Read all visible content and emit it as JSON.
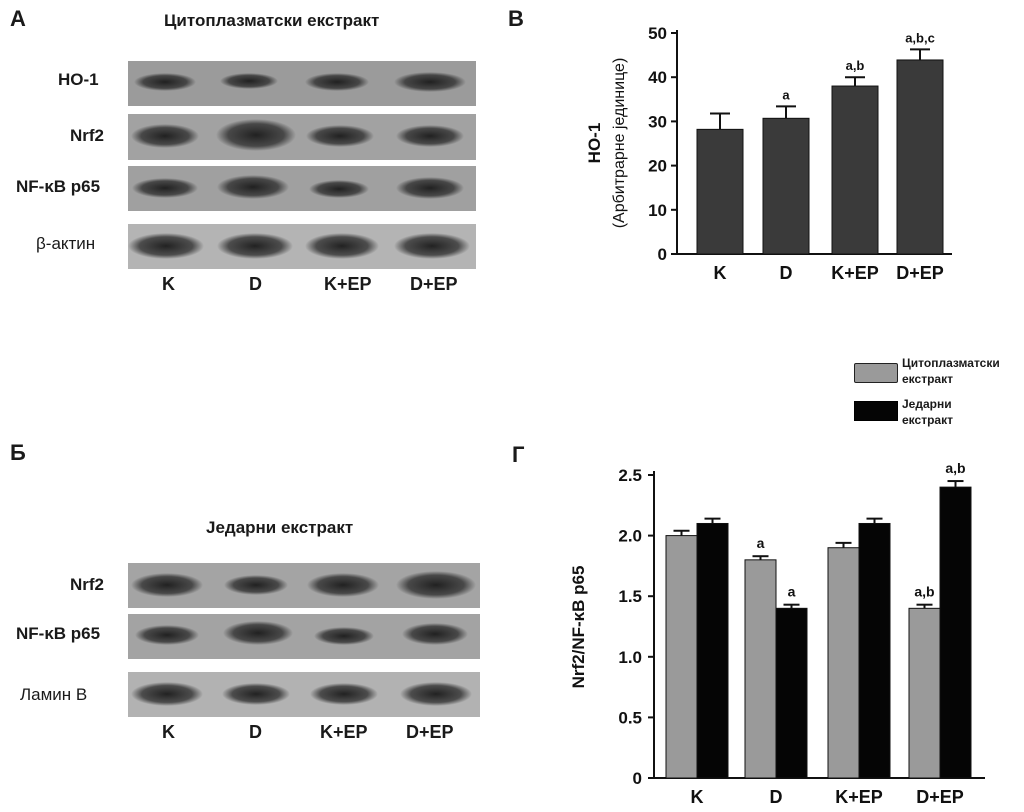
{
  "panels": {
    "a": {
      "letter": "А",
      "title": "Цитоплазматски екстракт",
      "rows": [
        "HO-1",
        "Nrf2",
        "NF-κB p65",
        "β-актин"
      ],
      "lanes": [
        "K",
        "D",
        "K+EP",
        "D+EP"
      ]
    },
    "b": {
      "letter": "Б",
      "title": "Једарни екстракт",
      "rows": [
        "Nrf2",
        "NF-κB p65",
        "Ламин B"
      ],
      "lanes": [
        "K",
        "D",
        "K+EP",
        "D+EP"
      ]
    },
    "c": {
      "letter": "B"
    },
    "d": {
      "letter": "Г"
    }
  },
  "legend": {
    "item1_line1": "Цитоплазматски",
    "item1_line2": "екстракт",
    "item2_line1": "Једарни",
    "item2_line2": "екстракт",
    "color1": "#9a9a9a",
    "color2": "#050505"
  },
  "chart_data": [
    {
      "type": "bar",
      "ylabel": "HO-1",
      "ylabel_sub": "(Арбитрарне јединице)",
      "categories": [
        "K",
        "D",
        "K+EP",
        "D+EP"
      ],
      "values": [
        28.2,
        30.7,
        38.0,
        43.9
      ],
      "errors": [
        3.6,
        2.7,
        2.0,
        2.4
      ],
      "annotations": [
        "",
        "a",
        "a,b",
        "a,b,c"
      ],
      "ylim": [
        0,
        50
      ],
      "yticks": [
        0,
        10,
        20,
        30,
        40,
        50
      ],
      "color": "#3a3a3a"
    },
    {
      "type": "bar",
      "ylabel": "Nrf2/NF-κB p65",
      "categories": [
        "K",
        "D",
        "K+EP",
        "D+EP"
      ],
      "series": [
        {
          "name": "Цитоплазматски екстракт",
          "values": [
            2.0,
            1.8,
            1.9,
            1.4
          ],
          "errors": [
            0.04,
            0.03,
            0.04,
            0.03
          ],
          "annotations": [
            "",
            "a",
            "",
            "a,b"
          ],
          "color": "#9a9a9a"
        },
        {
          "name": "Једарни екстракт",
          "values": [
            2.1,
            1.4,
            2.1,
            2.4
          ],
          "errors": [
            0.04,
            0.03,
            0.04,
            0.05
          ],
          "annotations": [
            "",
            "a",
            "",
            "a,b"
          ],
          "color": "#050505"
        }
      ],
      "ylim": [
        0,
        2.5
      ],
      "yticks": [
        "0",
        "0.5",
        "1.0",
        "1.5",
        "2.0",
        "2.5"
      ]
    }
  ]
}
